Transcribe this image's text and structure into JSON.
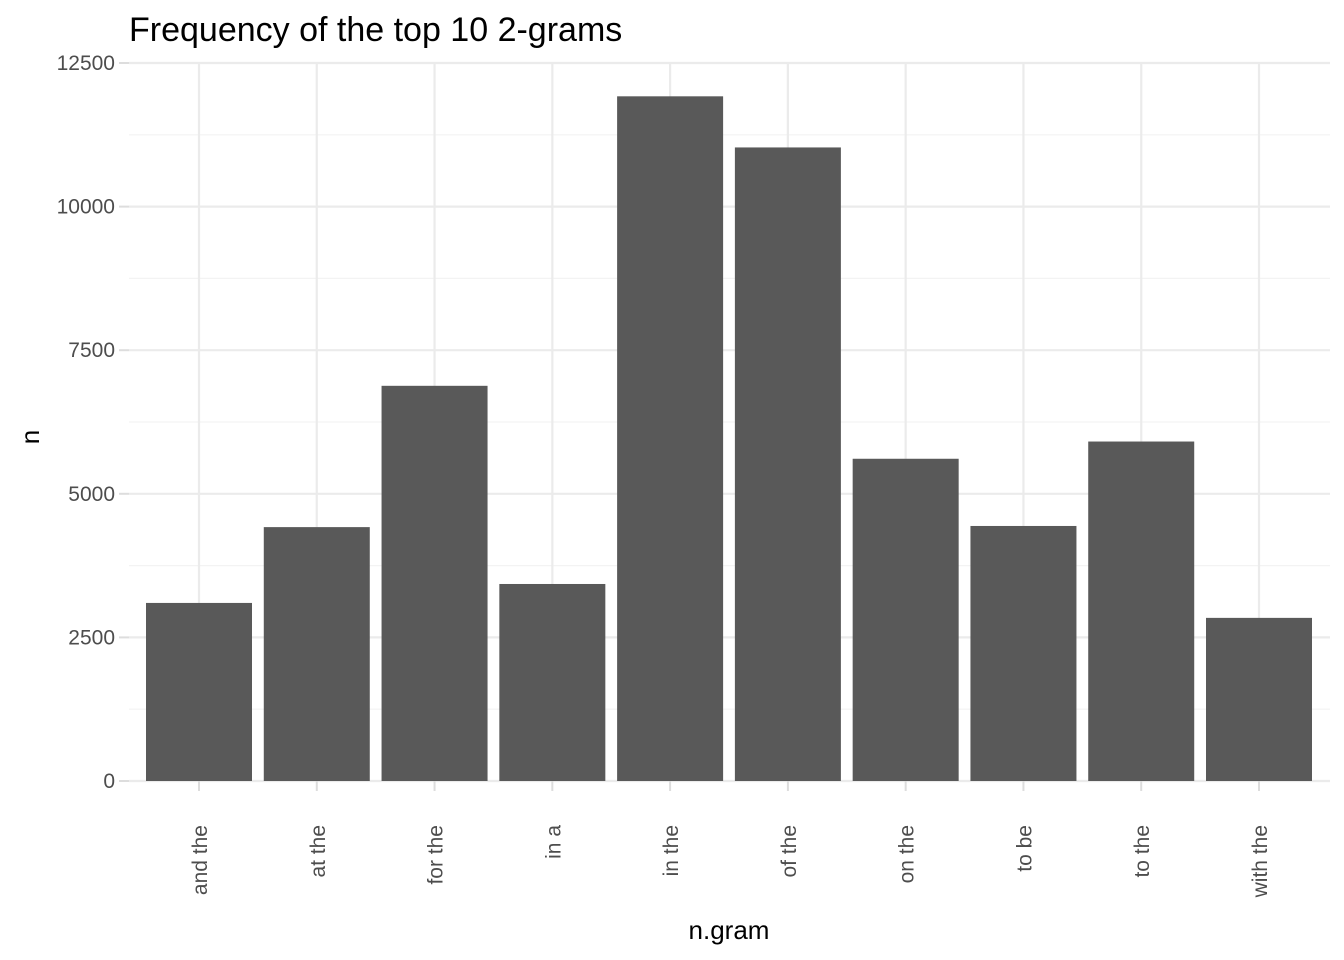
{
  "chart_data": {
    "type": "bar",
    "title": "Frequency of the top 10 2-grams",
    "xlabel": "n.gram",
    "ylabel": "n",
    "categories": [
      "and the",
      "at the",
      "for the",
      "in a",
      "in the",
      "of the",
      "on the",
      "to be",
      "to the",
      "with the"
    ],
    "values": [
      3100,
      4420,
      6880,
      3430,
      11920,
      11030,
      5610,
      4440,
      5910,
      2840
    ],
    "ylim": [
      0,
      12500
    ],
    "yticks": [
      0,
      2500,
      5000,
      7500,
      10000,
      12500
    ],
    "ytick_labels": [
      "0",
      "2500",
      "5000",
      "7500",
      "10000",
      "12500"
    ],
    "grid": true,
    "legend": "none",
    "bar_color": "#595959",
    "grid_color": "#ebebeb",
    "text_color": "#4d4d4d"
  }
}
